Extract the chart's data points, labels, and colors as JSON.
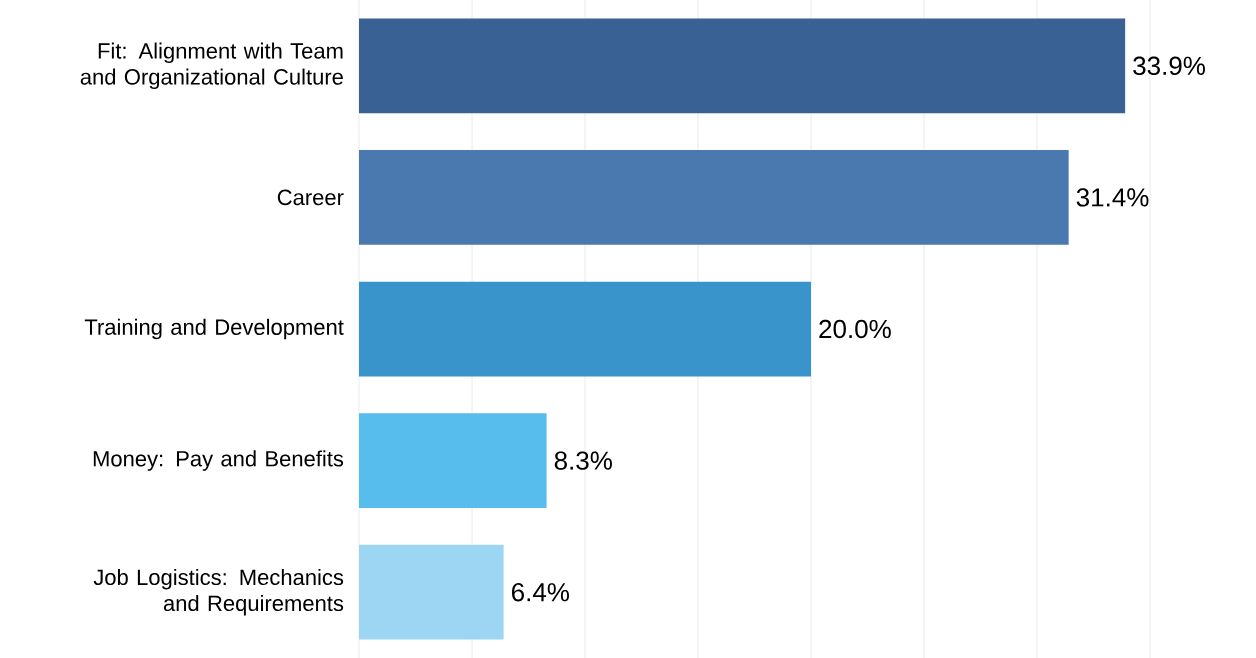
{
  "chart_data": {
    "type": "bar",
    "orientation": "horizontal",
    "categories": [
      "Fit: Alignment with Team and Organizational Culture",
      "Career",
      "Training and Development",
      "Money: Pay and Benefits",
      "Job Logistics: Mechanics and Requirements"
    ],
    "values": [
      33.9,
      31.4,
      20.0,
      8.3,
      6.4
    ],
    "colors": [
      "#3a6194",
      "#4a79b0",
      "#3a94cc",
      "#56bded",
      "#9cd6f2"
    ],
    "value_labels": [
      "33.9%",
      "31.4%",
      "20.0%",
      "8.3%",
      "6.4%"
    ],
    "xlim": [
      0,
      35
    ],
    "xticks": [
      {
        "value": 0,
        "label": null
      },
      {
        "value": 5,
        "label": null
      },
      {
        "value": 10,
        "label": null
      },
      {
        "value": 15,
        "label": null
      },
      {
        "value": 20,
        "label": null
      },
      {
        "value": 25,
        "label": null
      },
      {
        "value": 30,
        "label": null
      },
      {
        "value": 35,
        "label": null
      }
    ],
    "grid": "x",
    "tick_labels": "y"
  }
}
